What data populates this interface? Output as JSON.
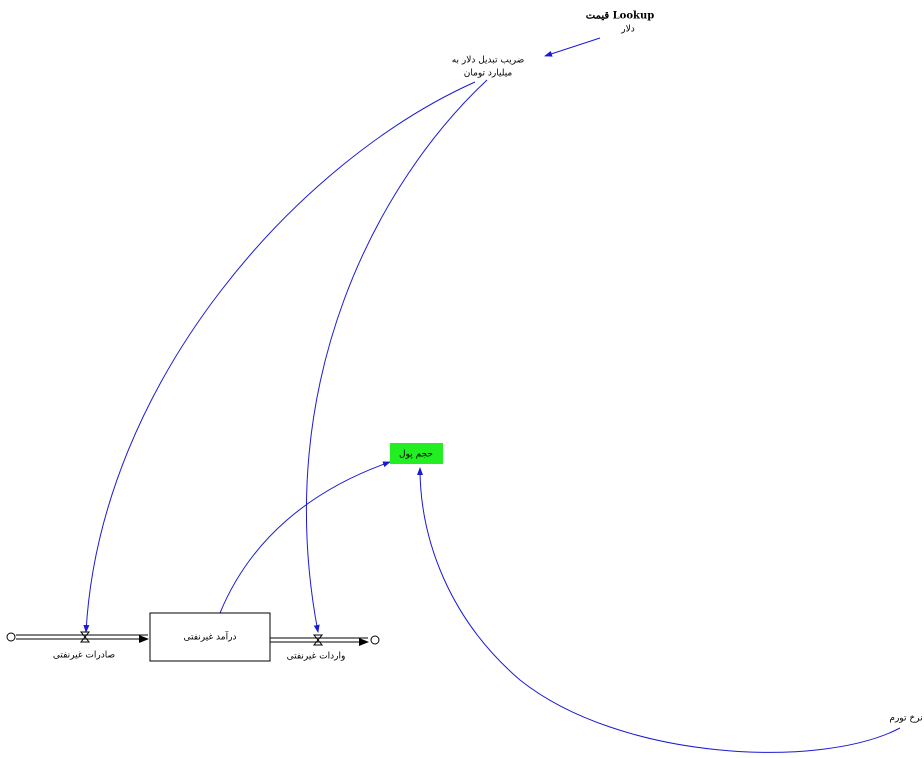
{
  "nodes": [
    {
      "label": [
        "قیمت Lookup",
        "دلار"
      ]
    },
    {
      "label": [
        "ضریب تبدیل دلار به",
        "میلیارد تومان"
      ]
    },
    {
      "label": [
        "حجم پول"
      ]
    },
    {
      "label": [
        "درآمد غیرنفتی"
      ]
    },
    {
      "label": [
        "صادرات غیرنفتی"
      ]
    },
    {
      "label": [
        "واردات غیرنفتی"
      ]
    },
    {
      "label": [
        "نرخ تورم"
      ]
    }
  ]
}
